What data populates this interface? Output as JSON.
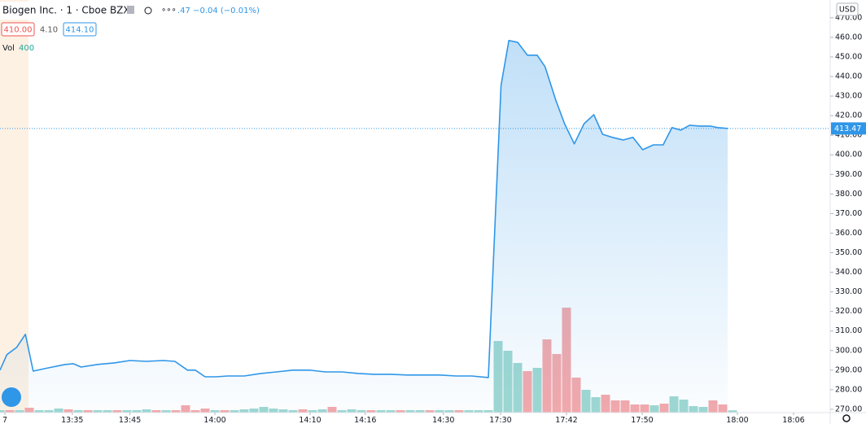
{
  "chart_data": {
    "type": "area",
    "title": "Biogen Inc. · 1 · Cboe BZX",
    "change": ".47 −0.04 (−0.01%)",
    "quote_boxes": [
      "410.00",
      "4.10",
      "414.10"
    ],
    "volume_label": "Vol",
    "currency": "USD",
    "last_price": 413.47,
    "color": "#2f96e8",
    "xlim": [
      0,
      85
    ],
    "ylim": [
      268.3,
      479.1
    ],
    "xticks": [
      {
        "value": 0.5,
        "label": "7"
      },
      {
        "value": 7.4,
        "label": "13:35"
      },
      {
        "value": 13.3,
        "label": "13:45"
      },
      {
        "value": 22,
        "label": "14:00"
      },
      {
        "value": 31.75,
        "label": "14:10"
      },
      {
        "value": 37.4,
        "label": "14:16"
      },
      {
        "value": 45.4,
        "label": "14:30"
      },
      {
        "value": 51.25,
        "label": "17:30"
      },
      {
        "value": 58,
        "label": "17:42"
      },
      {
        "value": 65.75,
        "label": "17:50"
      },
      {
        "value": 75.5,
        "label": "18:00"
      },
      {
        "value": 81.25,
        "label": "18:06"
      }
    ],
    "yticks": [
      {
        "value": 270,
        "label": "270.00"
      },
      {
        "value": 280,
        "label": "280.00"
      },
      {
        "value": 290,
        "label": "290.00"
      },
      {
        "value": 300,
        "label": "300.00"
      },
      {
        "value": 310,
        "label": "310.00"
      },
      {
        "value": 320,
        "label": "320.00"
      },
      {
        "value": 330,
        "label": "330.00"
      },
      {
        "value": 340,
        "label": "340.00"
      },
      {
        "value": 350,
        "label": "350.00"
      },
      {
        "value": 360,
        "label": "360.00"
      },
      {
        "value": 370,
        "label": "370.00"
      },
      {
        "value": 380,
        "label": "380.00"
      },
      {
        "value": 390,
        "label": "390.00"
      },
      {
        "value": 400,
        "label": "400.00"
      },
      {
        "value": 410,
        "label": "410.00"
      },
      {
        "value": 420,
        "label": "420.00"
      },
      {
        "value": 430,
        "label": "430.00"
      },
      {
        "value": 440,
        "label": "440.00"
      },
      {
        "value": 450,
        "label": "450.00"
      },
      {
        "value": 460,
        "label": "460.00"
      },
      {
        "value": 470,
        "label": "470.00"
      }
    ],
    "x": [
      0,
      0.7,
      1.7,
      2.6,
      3.4,
      5,
      6.7,
      7.5,
      8.3,
      10,
      11.7,
      13.3,
      15,
      16.7,
      17.9,
      19.2,
      20,
      21,
      22.1,
      23.3,
      25,
      26.7,
      28.3,
      30,
      31.7,
      33.3,
      35,
      36.7,
      38.3,
      40,
      41.7,
      43.3,
      45,
      46.7,
      48.3,
      50,
      51.3,
      52.1,
      53,
      54,
      55,
      55.8,
      56.9,
      57.8,
      58.8,
      59.8,
      60.8,
      61.7,
      62.7,
      63.8,
      64.8,
      65.8,
      66.9,
      67.9,
      68.8,
      69.7,
      70.6,
      71.7,
      72.7,
      73.5,
      74.5
    ],
    "series": [
      {
        "values": [
          290.0,
          297.9,
          301.6,
          308.3,
          289.5,
          291.2,
          292.9,
          293.3,
          291.6,
          292.9,
          293.7,
          294.9,
          294.5,
          294.9,
          294.5,
          290.0,
          290.0,
          286.6,
          286.6,
          287.0,
          287.0,
          288.3,
          289.1,
          290.0,
          290.0,
          289.1,
          289.1,
          288.3,
          287.9,
          287.9,
          287.5,
          287.5,
          287.5,
          287.0,
          287.0,
          286.2,
          435.5,
          458.4,
          457.5,
          450.9,
          450.9,
          445.1,
          428.0,
          415.9,
          405.6,
          415.9,
          420.5,
          410.5,
          408.9,
          407.6,
          408.9,
          402.6,
          405.1,
          405.1,
          413.9,
          412.6,
          415.1,
          414.7,
          414.7,
          413.9,
          413.5
        ]
      }
    ],
    "volume": {
      "ylim": [
        0,
        71000
      ],
      "values": [
        420,
        420,
        420,
        840,
        420,
        420,
        700,
        560,
        420,
        420,
        420,
        420,
        420,
        420,
        420,
        560,
        420,
        420,
        420,
        1260,
        420,
        700,
        420,
        420,
        420,
        560,
        700,
        980,
        700,
        560,
        420,
        560,
        420,
        560,
        980,
        420,
        560,
        420,
        420,
        420,
        420,
        420,
        420,
        420,
        420,
        420,
        420,
        420,
        420,
        420,
        420,
        12320,
        10640,
        8540,
        7140,
        7700,
        12600,
        10080,
        18060,
        6020,
        3920,
        2660,
        3080,
        2100,
        2100,
        1400,
        1400,
        1260,
        1540,
        2800,
        2240,
        1120,
        980,
        2100,
        1400,
        400
      ],
      "colors": [
        "#9fd8d1",
        "#f4a9ab",
        "#9fd8d1",
        "#f4a9ab",
        "#9fd8d1",
        "#9fd8d1",
        "#9fd8d1",
        "#f4a9ab",
        "#9fd8d1",
        "#f4a9ab",
        "#9fd8d1",
        "#9fd8d1",
        "#f4a9ab",
        "#9fd8d1",
        "#9fd8d1",
        "#9fd8d1",
        "#f4a9ab",
        "#9fd8d1",
        "#f4a9ab",
        "#f4a9ab",
        "#f4a9ab",
        "#f4a9ab",
        "#9fd8d1",
        "#f4a9ab",
        "#9fd8d1",
        "#9fd8d1",
        "#9fd8d1",
        "#9fd8d1",
        "#9fd8d1",
        "#9fd8d1",
        "#9fd8d1",
        "#f4a9ab",
        "#9fd8d1",
        "#9fd8d1",
        "#f4a9ab",
        "#9fd8d1",
        "#9fd8d1",
        "#9fd8d1",
        "#f4a9ab",
        "#9fd8d1",
        "#9fd8d1",
        "#f4a9ab",
        "#9fd8d1",
        "#9fd8d1",
        "#f4a9ab",
        "#9fd8d1",
        "#9fd8d1",
        "#f4a9ab",
        "#9fd8d1",
        "#9fd8d1",
        "#9fd8d1",
        "#9fd8d1",
        "#9fd8d1",
        "#9fd8d1",
        "#f4a9ab",
        "#9fd8d1",
        "#f4a9ab",
        "#f4a9ab",
        "#f4a9ab",
        "#f4a9ab",
        "#9fd8d1",
        "#9fd8d1",
        "#f4a9ab",
        "#f4a9ab",
        "#f4a9ab",
        "#f4a9ab",
        "#f4a9ab",
        "#9fd8d1",
        "#f4a9ab",
        "#9fd8d1",
        "#9fd8d1",
        "#9fd8d1",
        "#9fd8d1",
        "#f4a9ab",
        "#f4a9ab",
        "#9fd8d1"
      ]
    }
  }
}
